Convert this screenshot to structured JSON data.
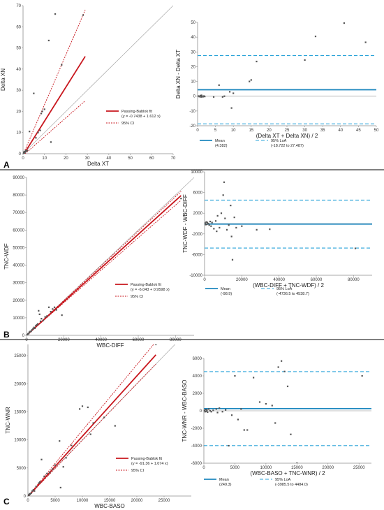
{
  "panels": [
    {
      "letter": "A"
    },
    {
      "letter": "B"
    },
    {
      "letter": "C"
    }
  ],
  "colors": {
    "fit": "#c8161d",
    "ci": "#c8161d",
    "identity": "#999999",
    "point": "#555555",
    "mean": "#1f88bf",
    "loa": "#2aa3d9",
    "zero": "#888888",
    "axis": "#8c8c8c"
  },
  "chart_data": [
    {
      "id": "A-left",
      "type": "scatter",
      "xlabel": "Delta XT",
      "ylabel": "Delta XN",
      "xlim": [
        0,
        70
      ],
      "ylim": [
        0,
        70
      ],
      "xticks": [
        0,
        10,
        20,
        30,
        40,
        50,
        60,
        70
      ],
      "yticks": [
        0,
        10,
        20,
        30,
        40,
        50,
        60,
        70
      ],
      "xtick_labels": [
        "0",
        "10",
        "20",
        "30",
        "40",
        "50",
        "60",
        "70"
      ],
      "ytick_labels": [
        "0",
        "10",
        "20",
        "30",
        "40",
        "50",
        "60",
        "70"
      ],
      "points": [
        [
          0.2,
          0.3
        ],
        [
          0.4,
          0.6
        ],
        [
          0.5,
          0.2
        ],
        [
          0.6,
          0.9
        ],
        [
          0.8,
          1.0
        ],
        [
          1.0,
          0.8
        ],
        [
          1.2,
          1.4
        ],
        [
          1.5,
          1.2
        ],
        [
          0.3,
          0.5
        ],
        [
          0.7,
          0.4
        ],
        [
          2,
          1.5
        ],
        [
          3,
          10.5
        ],
        [
          5,
          28.5
        ],
        [
          6,
          7.5
        ],
        [
          7,
          10
        ],
        [
          8,
          11
        ],
        [
          8.5,
          19
        ],
        [
          9,
          20
        ],
        [
          10,
          21
        ],
        [
          12,
          53.5
        ],
        [
          13,
          5.5
        ],
        [
          15,
          66
        ],
        [
          18,
          42
        ],
        [
          28,
          65.5
        ]
      ],
      "fit": {
        "intercept": -0.7438,
        "slope": 1.612,
        "x_range": [
          0,
          29
        ]
      },
      "ci_upper": {
        "x": [
          0,
          29
        ],
        "y": [
          -0.4,
          68
        ]
      },
      "ci_lower": {
        "x": [
          0,
          29
        ],
        "y": [
          -0.9,
          25
        ]
      },
      "identity": true,
      "legend": {
        "position": "right",
        "fit_label": "Passing-Bablok fit",
        "fit_eq": "(y = -0.7438 + 1.612 x)",
        "ci_label": "95% CI"
      }
    },
    {
      "id": "A-right",
      "type": "scatter",
      "xlabel": "(Delta XT + Delta XN) / 2",
      "ylabel": "Delta XN - Delta XT",
      "xlim": [
        0,
        50
      ],
      "ylim": [
        -20,
        50
      ],
      "xticks": [
        0,
        5,
        10,
        15,
        20,
        25,
        30,
        35,
        40,
        45,
        50
      ],
      "yticks": [
        -20,
        -10,
        0,
        10,
        20,
        30,
        40,
        50
      ],
      "xtick_labels": [
        "0",
        "5",
        "10",
        "15",
        "20",
        "25",
        "30",
        "35",
        "40",
        "45",
        "50"
      ],
      "ytick_labels": [
        "-20",
        "-10",
        "0",
        "10",
        "20",
        "30",
        "40",
        "50"
      ],
      "points": [
        [
          0.3,
          0.1
        ],
        [
          0.5,
          -0.3
        ],
        [
          0.8,
          0.4
        ],
        [
          1,
          -0.5
        ],
        [
          1.2,
          0.2
        ],
        [
          1.5,
          -0.4
        ],
        [
          1.8,
          0.1
        ],
        [
          2,
          -0.2
        ],
        [
          1.1,
          0.6
        ],
        [
          4.5,
          -0.5
        ],
        [
          6,
          7.5
        ],
        [
          7,
          -0.5
        ],
        [
          7.5,
          0
        ],
        [
          9,
          3
        ],
        [
          9.5,
          -8
        ],
        [
          10,
          2
        ],
        [
          14.5,
          10
        ],
        [
          15,
          11
        ],
        [
          16.5,
          23.5
        ],
        [
          30,
          24.5
        ],
        [
          33,
          40.5
        ],
        [
          41,
          49.5
        ],
        [
          47,
          36.5
        ]
      ],
      "mean": 4.382,
      "loa": [
        -18.722,
        27.487
      ],
      "legend": {
        "position": "bottom",
        "mean_label": "Mean",
        "mean_value": "(4.382)",
        "loa_label": "95% LoA",
        "loa_value": "(-18.722 to 27.487)"
      }
    },
    {
      "id": "B-left",
      "type": "scatter",
      "xlabel": "WBC-DIFF",
      "ylabel": "TNC-WDF",
      "xlim": [
        0,
        90000
      ],
      "ylim": [
        0,
        90000
      ],
      "xticks": [
        0,
        20000,
        40000,
        60000,
        80000
      ],
      "yticks": [
        0,
        10000,
        20000,
        30000,
        40000,
        50000,
        60000,
        70000,
        80000,
        90000
      ],
      "xtick_labels": [
        "0",
        "20000",
        "40000",
        "60000",
        "80000"
      ],
      "ytick_labels": [
        "0",
        "10000",
        "20000",
        "30000",
        "40000",
        "50000",
        "60000",
        "70000",
        "80000",
        "90000"
      ],
      "points": [
        [
          200,
          300
        ],
        [
          500,
          400
        ],
        [
          800,
          900
        ],
        [
          1200,
          1000
        ],
        [
          1500,
          1800
        ],
        [
          2000,
          2200
        ],
        [
          2500,
          2300
        ],
        [
          3000,
          3200
        ],
        [
          3500,
          3800
        ],
        [
          4000,
          4500
        ],
        [
          4500,
          4000
        ],
        [
          5000,
          5500
        ],
        [
          5500,
          6000
        ],
        [
          6000,
          6500
        ],
        [
          6500,
          14000
        ],
        [
          7000,
          12000
        ],
        [
          7500,
          8000
        ],
        [
          8000,
          9500
        ],
        [
          9000,
          8500
        ],
        [
          10000,
          10500
        ],
        [
          11000,
          11000
        ],
        [
          12000,
          16000
        ],
        [
          13000,
          13500
        ],
        [
          14000,
          15000
        ],
        [
          15000,
          16000
        ],
        [
          16000,
          14500
        ],
        [
          19000,
          11500
        ],
        [
          83000,
          78000
        ]
      ],
      "fit": {
        "intercept": -6.043,
        "slope": 0.9598,
        "x_range": [
          0,
          83000
        ]
      },
      "ci_upper": {
        "x": [
          0,
          83000
        ],
        "y": [
          50,
          82000
        ]
      },
      "ci_lower": {
        "x": [
          0,
          83000
        ],
        "y": [
          -50,
          77000
        ]
      },
      "identity": true,
      "legend": {
        "position": "right",
        "fit_label": "Passing-Bablok fit",
        "fit_eq": "(y = -6.043 + 0.9598 x)",
        "ci_label": "95% CI"
      }
    },
    {
      "id": "B-right",
      "type": "scatter",
      "xlabel": "(WBC-DIFF + TNC-WDF) / 2",
      "ylabel": "TNC-WDF - WBC-DIFF",
      "xlim": [
        0,
        90000
      ],
      "ylim": [
        -10000,
        10000
      ],
      "xticks": [
        0,
        20000,
        40000,
        60000,
        80000
      ],
      "yticks": [
        -10000,
        -6000,
        -2000,
        2000,
        6000,
        10000
      ],
      "xtick_labels": [
        "0",
        "20000",
        "40000",
        "60000",
        "80000"
      ],
      "ytick_labels": [
        "-10000",
        "-6000",
        "-2000",
        "2000",
        "6000",
        "10000"
      ],
      "points": [
        [
          300,
          100
        ],
        [
          600,
          -200
        ],
        [
          900,
          300
        ],
        [
          1200,
          -150
        ],
        [
          1500,
          200
        ],
        [
          2000,
          0
        ],
        [
          2500,
          -300
        ],
        [
          3000,
          400
        ],
        [
          3500,
          -500
        ],
        [
          4000,
          200
        ],
        [
          5000,
          -1000
        ],
        [
          6000,
          500
        ],
        [
          6500,
          -1500
        ],
        [
          7000,
          1500
        ],
        [
          8000,
          -800
        ],
        [
          9000,
          2000
        ],
        [
          10000,
          5500
        ],
        [
          10500,
          8000
        ],
        [
          11000,
          1000
        ],
        [
          12000,
          -1200
        ],
        [
          13000,
          -300
        ],
        [
          14000,
          3500
        ],
        [
          14500,
          -2500
        ],
        [
          15000,
          -7000
        ],
        [
          16000,
          1200
        ],
        [
          17000,
          -800
        ],
        [
          20000,
          -500
        ],
        [
          28000,
          -1200
        ],
        [
          35000,
          -1100
        ],
        [
          81000,
          -4800
        ]
      ],
      "mean": -98.9,
      "loa": [
        -4736.5,
        4538.7
      ],
      "legend": {
        "position": "bottom",
        "mean_label": "Mean",
        "mean_value": "(-98.9)",
        "loa_label": "95% LoA",
        "loa_value": "(-4736.5 to 4538.7)"
      }
    },
    {
      "id": "C-left",
      "type": "scatter",
      "xlabel": "WBC-BASO",
      "ylabel": "TNC-WNR",
      "xlim": [
        0,
        30000
      ],
      "ylim": [
        0,
        27000
      ],
      "xticks": [
        0,
        5000,
        10000,
        15000,
        20000,
        25000
      ],
      "yticks": [
        0,
        5000,
        10000,
        15000,
        20000,
        25000
      ],
      "xtick_labels": [
        "0",
        "5000",
        "10000",
        "15000",
        "20000",
        "25000"
      ],
      "ytick_labels": [
        "0",
        "5000",
        "10000",
        "15000",
        "20000",
        "25000"
      ],
      "points": [
        [
          100,
          200
        ],
        [
          200,
          100
        ],
        [
          300,
          400
        ],
        [
          400,
          300
        ],
        [
          600,
          500
        ],
        [
          800,
          900
        ],
        [
          1000,
          1100
        ],
        [
          1200,
          900
        ],
        [
          1500,
          1700
        ],
        [
          2000,
          2300
        ],
        [
          2200,
          2500
        ],
        [
          2500,
          6500
        ],
        [
          3000,
          3500
        ],
        [
          3500,
          4000
        ],
        [
          4000,
          4200
        ],
        [
          4500,
          4800
        ],
        [
          5000,
          5500
        ],
        [
          5800,
          9800
        ],
        [
          6000,
          1500
        ],
        [
          6500,
          5200
        ],
        [
          7000,
          6800
        ],
        [
          8000,
          9000
        ],
        [
          9500,
          15500
        ],
        [
          10000,
          16000
        ],
        [
          11000,
          15800
        ],
        [
          11500,
          11000
        ],
        [
          12000,
          13000
        ],
        [
          14000,
          14000
        ],
        [
          16000,
          12500
        ],
        [
          23500,
          27000
        ]
      ],
      "fit": {
        "intercept": -91.36,
        "slope": 1.074,
        "x_range": [
          0,
          23500
        ]
      },
      "ci_upper": {
        "x": [
          0,
          23500
        ],
        "y": [
          -50,
          27500
        ]
      },
      "ci_lower": {
        "x": [
          0,
          23500
        ],
        "y": [
          -100,
          23500
        ]
      },
      "identity": true,
      "legend": {
        "position": "right",
        "fit_label": "Passing-Bablok fit",
        "fit_eq": "(y = -91.36 + 1.074 x)",
        "ci_label": "95% CI"
      }
    },
    {
      "id": "C-right",
      "type": "scatter",
      "xlabel": "(WBC-BASO + TNC-WNR) / 2",
      "ylabel": "TNC-WNR - WBC-BASO",
      "xlim": [
        0,
        27000
      ],
      "ylim": [
        -6000,
        6000
      ],
      "xticks": [
        0,
        5000,
        10000,
        15000,
        20000,
        25000
      ],
      "yticks": [
        -6000,
        -4000,
        -2000,
        0,
        2000,
        4000,
        6000
      ],
      "xtick_labels": [
        "0",
        "5000",
        "10000",
        "15000",
        "20000",
        "25000"
      ],
      "ytick_labels": [
        "-6000",
        "-4000",
        "-2000",
        "0",
        "2000",
        "4000",
        "6000"
      ],
      "points": [
        [
          100,
          50
        ],
        [
          200,
          -100
        ],
        [
          300,
          150
        ],
        [
          400,
          -50
        ],
        [
          500,
          100
        ],
        [
          600,
          -150
        ],
        [
          800,
          200
        ],
        [
          1000,
          0
        ],
        [
          1200,
          -100
        ],
        [
          1500,
          50
        ],
        [
          2000,
          200
        ],
        [
          2200,
          -200
        ],
        [
          2500,
          300
        ],
        [
          3000,
          -100
        ],
        [
          3500,
          100
        ],
        [
          4000,
          -4000
        ],
        [
          4500,
          -500
        ],
        [
          5000,
          4000
        ],
        [
          5500,
          -1000
        ],
        [
          6000,
          200
        ],
        [
          6500,
          -2200
        ],
        [
          7000,
          -2200
        ],
        [
          8000,
          3800
        ],
        [
          9000,
          1000
        ],
        [
          10000,
          800
        ],
        [
          11000,
          600
        ],
        [
          11500,
          -1400
        ],
        [
          12000,
          5000
        ],
        [
          12500,
          5700
        ],
        [
          13000,
          4500
        ],
        [
          13500,
          2800
        ],
        [
          14000,
          -2700
        ],
        [
          15000,
          -6000
        ],
        [
          25500,
          4000
        ]
      ],
      "mean": 249.3,
      "loa": [
        -3985.5,
        4484.0
      ],
      "legend": {
        "position": "bottom",
        "mean_label": "Mean",
        "mean_value": "(249.3)",
        "loa_label": "95% LoA",
        "loa_value": "(-3985.5 to 4484.0)"
      }
    }
  ]
}
